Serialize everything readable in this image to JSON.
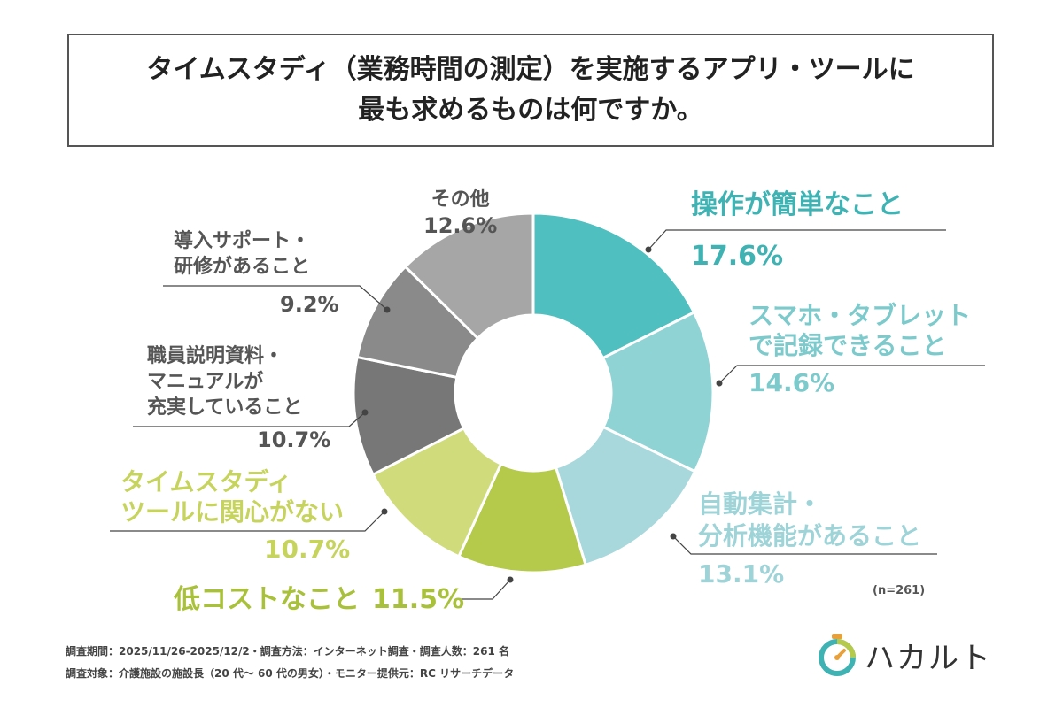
{
  "title": {
    "line1": "タイムスタディ（業務時間の測定）を実施するアプリ・ツールに",
    "line2": "最も求めるものは何ですか。"
  },
  "chart_data": {
    "type": "pie",
    "donut": true,
    "start_angle_deg": 0,
    "direction": "clockwise",
    "slices": [
      {
        "label": "操作が簡単なこと",
        "value": 17.6,
        "display": "17.6%",
        "color": "#4fbfbf",
        "text_color": "#3fb3b3"
      },
      {
        "label": "スマホ・タブレットで記録できること",
        "value": 14.6,
        "display": "14.6%",
        "color": "#8fd3d5",
        "text_color": "#7ccacc"
      },
      {
        "label": "自動集計・分析機能があること",
        "value": 13.1,
        "display": "13.1%",
        "color": "#a9d8dc",
        "text_color": "#9ed3d8"
      },
      {
        "label": "低コストなこと",
        "value": 11.5,
        "display": "11.5%",
        "color": "#b5c94a",
        "text_color": "#a9c13a"
      },
      {
        "label": "タイムスタディツールに関心がない",
        "value": 10.7,
        "display": "10.7%",
        "color": "#d0dc7c",
        "text_color": "#c6d45e"
      },
      {
        "label": "職員説明資料・マニュアルが充実していること",
        "value": 10.7,
        "display": "10.7%",
        "color": "#777777",
        "text_color": "#555555"
      },
      {
        "label": "導入サポート・研修があること",
        "value": 9.2,
        "display": "9.2%",
        "color": "#8a8a8a",
        "text_color": "#555555"
      },
      {
        "label": "その他",
        "value": 12.6,
        "display": "12.6%",
        "color": "#a6a6a6",
        "text_color": "#555555"
      }
    ],
    "n_label": "(n=261)"
  },
  "labels": {
    "s0": {
      "line1": "操作が簡単なこと",
      "pct": "17.6%"
    },
    "s1": {
      "line1": "スマホ・タブレット",
      "line2": "で記録できること",
      "pct": "14.6%"
    },
    "s2": {
      "line1": "自動集計・",
      "line2": "分析機能があること",
      "pct": "13.1%"
    },
    "s3": {
      "line1": "低コストなこと",
      "pct": "11.5%"
    },
    "s4": {
      "line1": "タイムスタディ",
      "line2": "ツールに関心がない",
      "pct": "10.7%"
    },
    "s5": {
      "line1": "職員説明資料・",
      "line2": "マニュアルが",
      "line3": "充実していること",
      "pct": "10.7%"
    },
    "s6": {
      "line1": "導入サポート・",
      "line2": "研修があること",
      "pct": "9.2%"
    },
    "s7": {
      "line1": "その他",
      "pct": "12.6%"
    }
  },
  "footer": {
    "line1": "調査期間：2025/11/26-2025/12/2・調査方法：インターネット調査・調査人数：261 名",
    "line2": "調査対象：介護施設の施設長（20 代～ 60 代の男女）・モニター提供元：RC リサーチデータ"
  },
  "logo": {
    "text": "ハカルト",
    "icon": "stopwatch-icon",
    "colors": [
      "#3fb3b3",
      "#b5c94a",
      "#e8a13a"
    ]
  }
}
